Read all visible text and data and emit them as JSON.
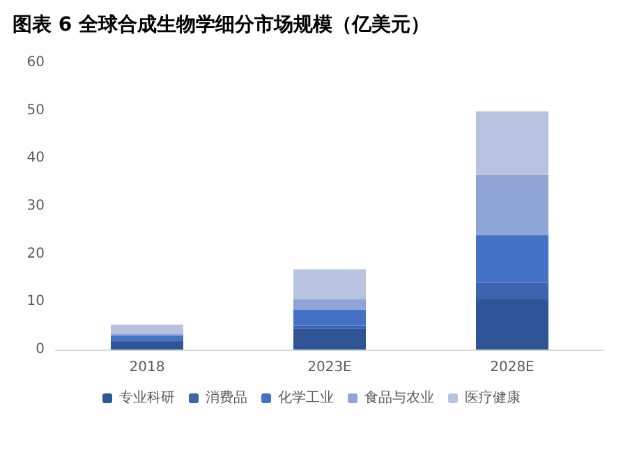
{
  "chart_data": {
    "type": "bar",
    "title": "图表 6 全球合成生物学细分市场规模（亿美元）",
    "categories": [
      "2018",
      "2023E",
      "2028E"
    ],
    "stacked": true,
    "ylim": [
      0,
      60
    ],
    "yticks": [
      0,
      10,
      20,
      30,
      40,
      50,
      60
    ],
    "grid": false,
    "legend": "bottom",
    "series": [
      {
        "name": "专业科研",
        "color": "#2f5597",
        "values": [
          1.6,
          4.4,
          10.5
        ]
      },
      {
        "name": "消费品",
        "color": "#3a64ad",
        "values": [
          0.4,
          0.6,
          3.5
        ]
      },
      {
        "name": "化学工业",
        "color": "#4472c4",
        "values": [
          0.9,
          3.3,
          9.9
        ]
      },
      {
        "name": "食品与农业",
        "color": "#8fa5d5",
        "values": [
          0.4,
          2.2,
          12.7
        ]
      },
      {
        "name": "医疗健康",
        "color": "#b8c3e2",
        "values": [
          1.9,
          6.3,
          13.2
        ]
      }
    ]
  }
}
